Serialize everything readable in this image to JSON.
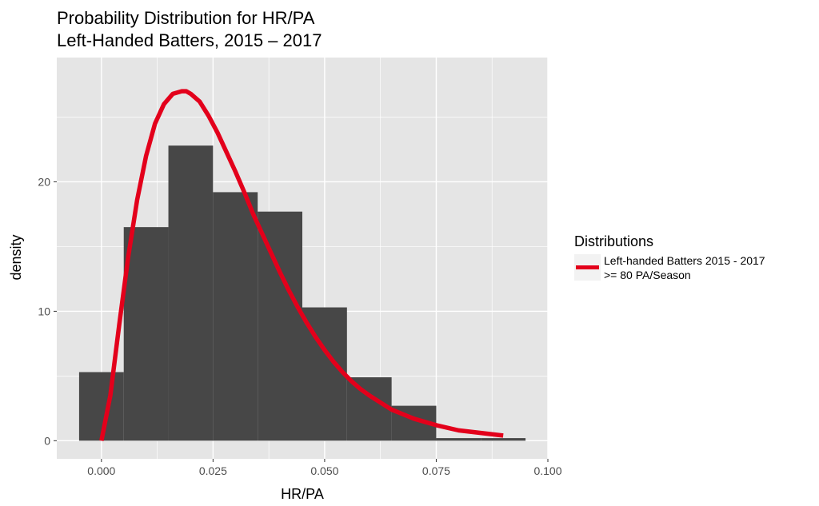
{
  "chart_data": {
    "type": "bar",
    "title": [
      "Probability Distribution for HR/PA",
      "Left-Handed Batters, 2015 – 2017"
    ],
    "xlabel": "HR/PA",
    "ylabel": "density",
    "xlim": [
      -0.01,
      0.1
    ],
    "ylim": [
      -1.4,
      29.6
    ],
    "x_ticks": [
      0.0,
      0.025,
      0.05,
      0.075,
      0.1
    ],
    "x_tick_labels": [
      "0.000",
      "0.025",
      "0.050",
      "0.075",
      "0.100"
    ],
    "y_ticks": [
      0,
      10,
      20
    ],
    "y_tick_labels": [
      "0",
      "10",
      "20"
    ],
    "grid": true,
    "bin_width": 0.01,
    "bins": [
      {
        "x0": -0.005,
        "x1": 0.005,
        "density": 5.3
      },
      {
        "x0": 0.005,
        "x1": 0.015,
        "density": 16.5
      },
      {
        "x0": 0.015,
        "x1": 0.025,
        "density": 22.8
      },
      {
        "x0": 0.025,
        "x1": 0.035,
        "density": 19.2
      },
      {
        "x0": 0.035,
        "x1": 0.045,
        "density": 17.7
      },
      {
        "x0": 0.045,
        "x1": 0.055,
        "density": 10.3
      },
      {
        "x0": 0.055,
        "x1": 0.065,
        "density": 4.9
      },
      {
        "x0": 0.065,
        "x1": 0.075,
        "density": 2.7
      },
      {
        "x0": 0.075,
        "x1": 0.085,
        "density": 0.2
      },
      {
        "x0": 0.085,
        "x1": 0.095,
        "density": 0.2
      }
    ],
    "bar_color": "#474747",
    "series": [
      {
        "name": "Left-handed Batters 2015 - 2017\n>= 80 PA/Season",
        "type": "line",
        "color": "#e3001b",
        "x": [
          0.0,
          0.002,
          0.004,
          0.006,
          0.008,
          0.01,
          0.012,
          0.014,
          0.016,
          0.018,
          0.019,
          0.02,
          0.022,
          0.024,
          0.026,
          0.028,
          0.03,
          0.032,
          0.034,
          0.036,
          0.038,
          0.04,
          0.042,
          0.044,
          0.046,
          0.048,
          0.05,
          0.052,
          0.054,
          0.056,
          0.058,
          0.06,
          0.065,
          0.07,
          0.075,
          0.08,
          0.085,
          0.09
        ],
        "y": [
          0.0,
          3.5,
          9.0,
          14.2,
          18.6,
          22.0,
          24.5,
          26.0,
          26.8,
          27.0,
          27.0,
          26.8,
          26.2,
          25.1,
          23.8,
          22.3,
          20.8,
          19.2,
          17.5,
          16.0,
          14.5,
          13.0,
          11.6,
          10.3,
          9.1,
          8.0,
          7.0,
          6.1,
          5.3,
          4.6,
          4.0,
          3.5,
          2.4,
          1.7,
          1.2,
          0.8,
          0.6,
          0.4
        ]
      }
    ],
    "legend": {
      "title": "Distributions",
      "placement": "right",
      "entries": [
        {
          "label_lines": [
            "Left-handed Batters 2015 - 2017",
            ">= 80 PA/Season"
          ],
          "color": "#e3001b"
        }
      ]
    },
    "panel_background": "#e5e5e5",
    "grid_color": "#ffffff"
  }
}
